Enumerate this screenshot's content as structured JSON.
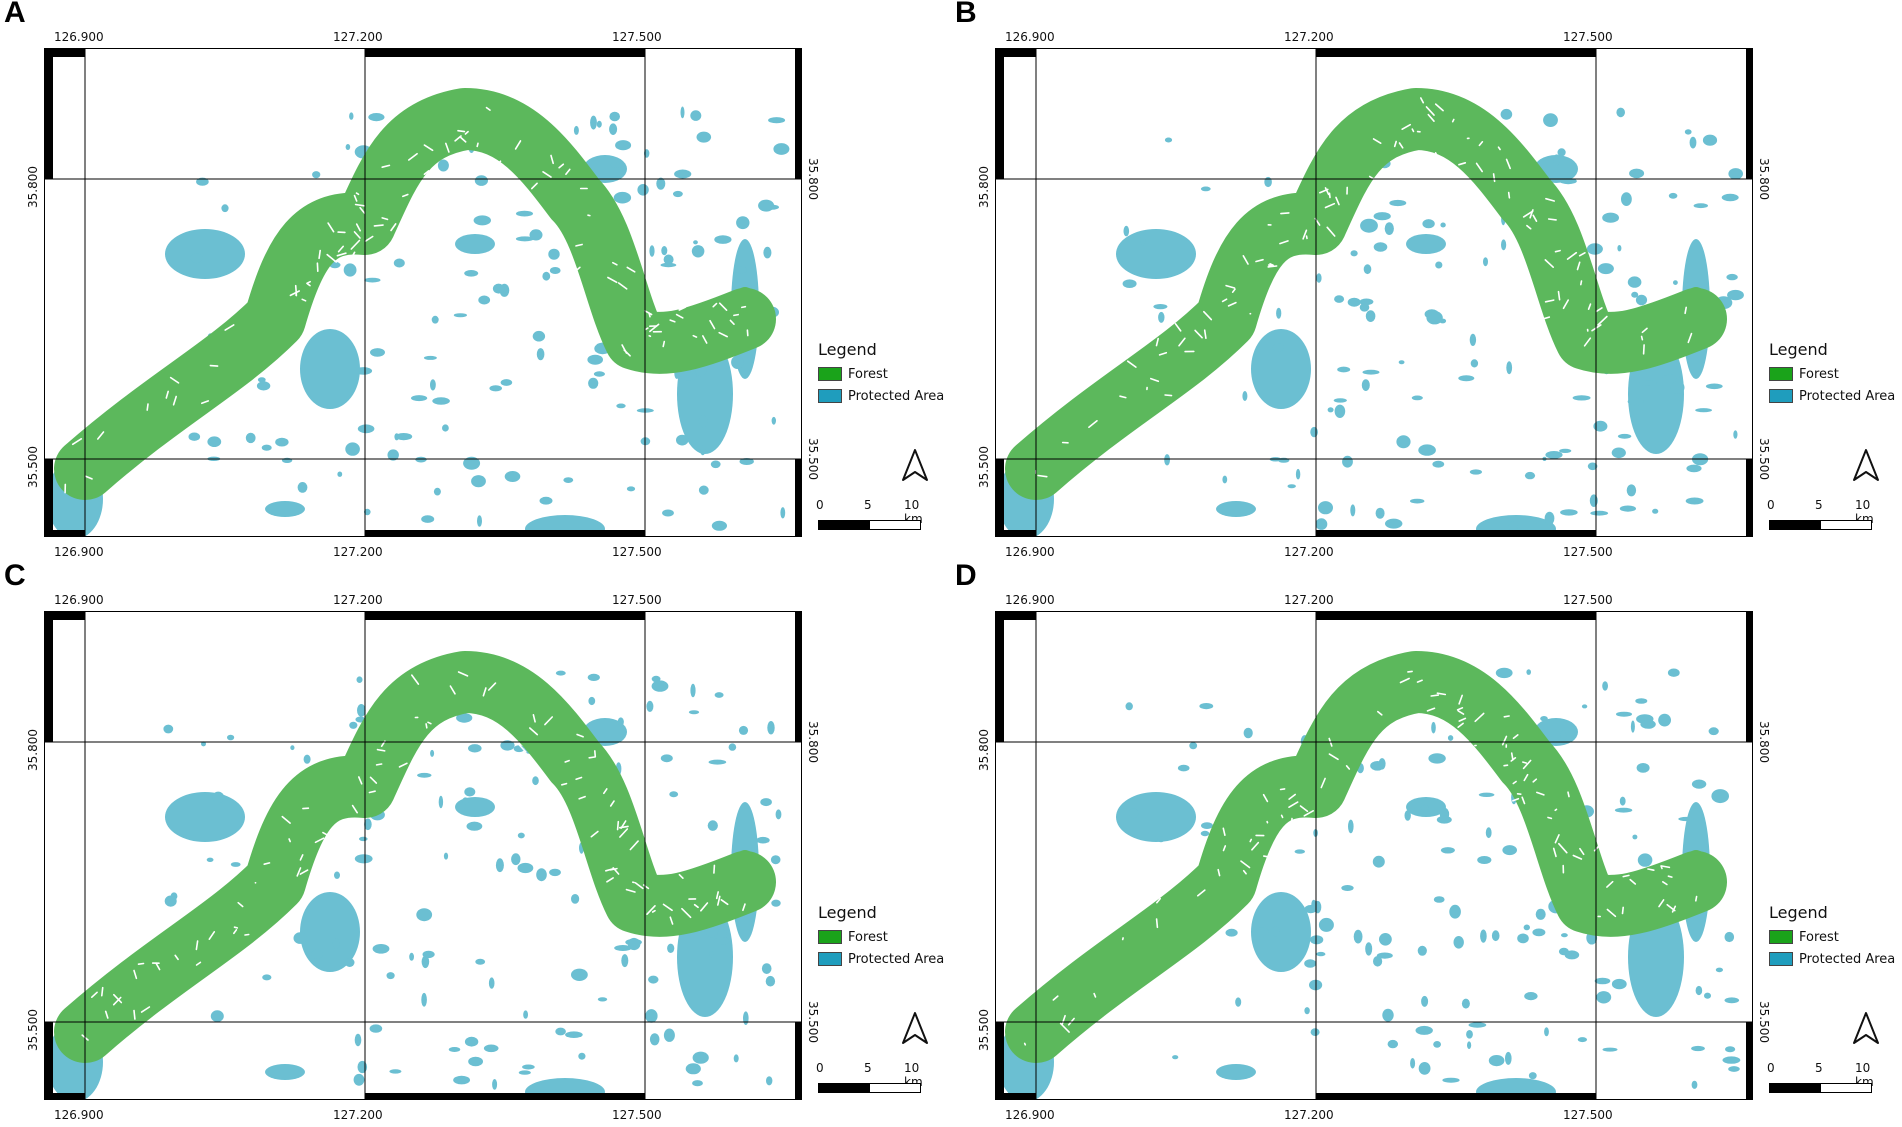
{
  "figure": {
    "colors": {
      "forest": "#5cb85c",
      "protected": "#6bbfd2",
      "legend_forest": "#1aa31a",
      "legend_protected": "#1f9dbd"
    },
    "legend": {
      "title": "Legend",
      "items": [
        {
          "label": "Forest"
        },
        {
          "label": "Protected Area"
        }
      ]
    },
    "axes": {
      "x_ticks": [
        "126.900",
        "127.200",
        "127.500"
      ],
      "y_ticks": [
        "35.800",
        "35.500"
      ]
    },
    "scale": {
      "labels": [
        "0",
        "5",
        "10 km"
      ]
    },
    "north_icon": "north-arrow-icon",
    "panels": [
      {
        "label": "A"
      },
      {
        "label": "B"
      },
      {
        "label": "C"
      },
      {
        "label": "D"
      }
    ]
  }
}
